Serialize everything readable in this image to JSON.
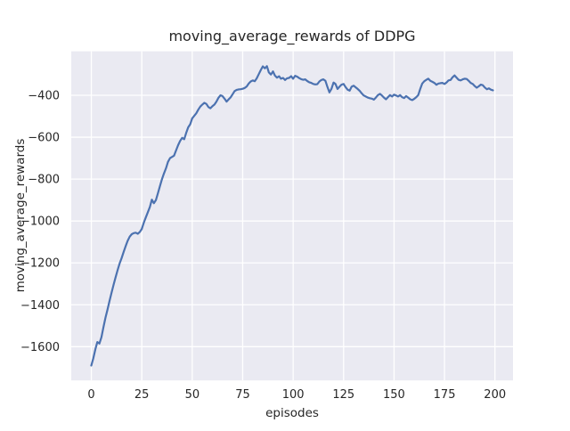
{
  "chart_data": {
    "type": "line",
    "title": "moving_average_rewards of DDPG",
    "xlabel": "episodes",
    "ylabel": "moving_average_rewards",
    "x_start": 0,
    "x_step": 1,
    "values": [
      -1690,
      -1655,
      -1612,
      -1578,
      -1585,
      -1555,
      -1508,
      -1462,
      -1423,
      -1383,
      -1343,
      -1305,
      -1270,
      -1235,
      -1203,
      -1178,
      -1148,
      -1120,
      -1095,
      -1075,
      -1063,
      -1058,
      -1056,
      -1061,
      -1053,
      -1038,
      -1008,
      -983,
      -958,
      -933,
      -898,
      -915,
      -900,
      -868,
      -833,
      -800,
      -773,
      -748,
      -718,
      -700,
      -694,
      -688,
      -663,
      -638,
      -618,
      -603,
      -610,
      -580,
      -553,
      -538,
      -510,
      -498,
      -486,
      -469,
      -454,
      -444,
      -436,
      -441,
      -456,
      -462,
      -452,
      -444,
      -430,
      -412,
      -400,
      -404,
      -416,
      -430,
      -420,
      -410,
      -395,
      -380,
      -374,
      -372,
      -371,
      -369,
      -365,
      -358,
      -344,
      -334,
      -329,
      -333,
      -319,
      -299,
      -279,
      -262,
      -271,
      -261,
      -291,
      -301,
      -286,
      -306,
      -316,
      -309,
      -321,
      -317,
      -327,
      -319,
      -317,
      -309,
      -321,
      -307,
      -311,
      -318,
      -323,
      -326,
      -324,
      -332,
      -338,
      -341,
      -346,
      -348,
      -347,
      -334,
      -327,
      -324,
      -331,
      -361,
      -386,
      -369,
      -339,
      -346,
      -370,
      -359,
      -349,
      -346,
      -361,
      -373,
      -378,
      -359,
      -354,
      -362,
      -370,
      -379,
      -391,
      -401,
      -406,
      -411,
      -414,
      -416,
      -421,
      -411,
      -399,
      -393,
      -401,
      -411,
      -419,
      -409,
      -399,
      -406,
      -397,
      -401,
      -406,
      -399,
      -409,
      -413,
      -404,
      -411,
      -419,
      -423,
      -417,
      -409,
      -399,
      -369,
      -344,
      -333,
      -326,
      -321,
      -331,
      -336,
      -341,
      -350,
      -344,
      -342,
      -341,
      -346,
      -339,
      -329,
      -327,
      -314,
      -305,
      -316,
      -326,
      -329,
      -324,
      -321,
      -322,
      -331,
      -341,
      -346,
      -356,
      -364,
      -357,
      -349,
      -352,
      -363,
      -371,
      -367,
      -373,
      -376
    ],
    "xlim": [
      -9.95,
      208.95
    ],
    "ylim": [
      -1761,
      -190
    ],
    "xticks": [
      0,
      25,
      50,
      75,
      100,
      125,
      150,
      175,
      200
    ],
    "xtick_labels": [
      "0",
      "25",
      "50",
      "75",
      "100",
      "125",
      "150",
      "175",
      "200"
    ],
    "yticks": [
      -400,
      -600,
      -800,
      -1000,
      -1200,
      -1400,
      -1600
    ],
    "ytick_labels": [
      "−400",
      "−600",
      "−800",
      "−1000",
      "−1200",
      "−1400",
      "−1600"
    ],
    "grid": true,
    "legend": false,
    "line_color": "#4c72b0",
    "plot_bg": "#eaeaf2",
    "grid_color": "#ffffff",
    "fig_bg": "#ffffff",
    "text_color": "#262626"
  }
}
